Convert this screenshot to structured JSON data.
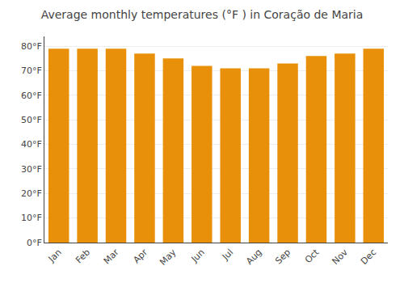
{
  "chart_data": {
    "type": "bar",
    "title": "Average monthly temperatures (°F ) in Coração de Maria",
    "categories": [
      "Jan",
      "Feb",
      "Mar",
      "Apr",
      "May",
      "Jun",
      "Jul",
      "Aug",
      "Sep",
      "Oct",
      "Nov",
      "Dec"
    ],
    "values": [
      79,
      79,
      79,
      77,
      75,
      72,
      71,
      71,
      73,
      76,
      77,
      79
    ],
    "color": "#E8900A",
    "ylim": [
      0,
      84
    ],
    "yticks": [
      {
        "value": 0,
        "label": "0°F"
      },
      {
        "value": 10,
        "label": "10°F"
      },
      {
        "value": 20,
        "label": "20°F"
      },
      {
        "value": 30,
        "label": "30°F"
      },
      {
        "value": 40,
        "label": "40°F"
      },
      {
        "value": 50,
        "label": "50°F"
      },
      {
        "value": 60,
        "label": "60°F"
      },
      {
        "value": 70,
        "label": "70°F"
      },
      {
        "value": 80,
        "label": "80°F"
      }
    ],
    "grid": true
  }
}
